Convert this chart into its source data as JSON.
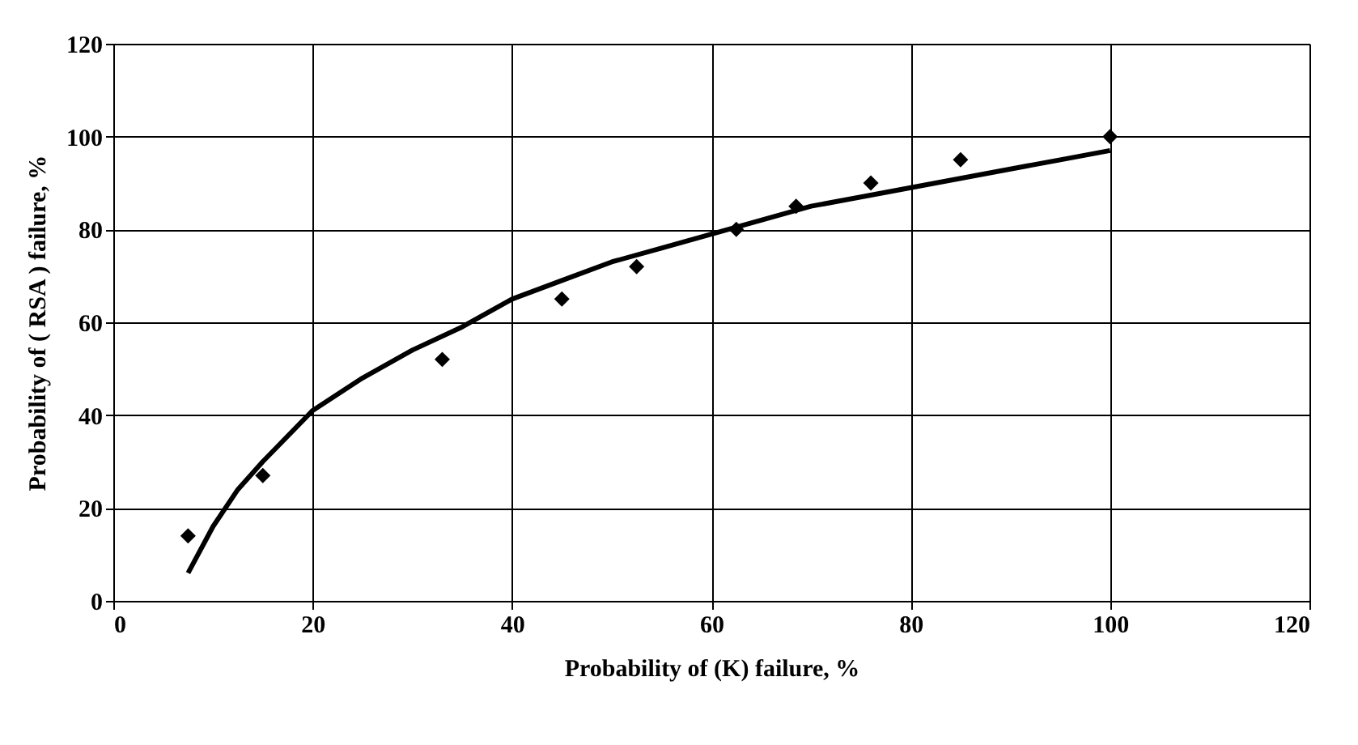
{
  "chart_data": {
    "type": "scatter",
    "xlabel": "Probability of (K) failure, %",
    "ylabel": "Probability of ( RSA ) failure, %",
    "xlim": [
      0,
      120
    ],
    "xticks": [
      0,
      20,
      40,
      60,
      80,
      100,
      120
    ],
    "ylim": [
      0,
      120
    ],
    "yticks": [
      0,
      20,
      40,
      60,
      80,
      100,
      120
    ],
    "grid": true,
    "series": [
      {
        "color": "#000000",
        "marker": "diamond",
        "x": [
          7.5,
          15,
          33,
          45,
          52.5,
          62.5,
          68.5,
          76,
          85,
          100
        ],
        "values": [
          14,
          27,
          52,
          65,
          72,
          80,
          85,
          90,
          95,
          100
        ]
      },
      {
        "type": "line",
        "color": "#000000",
        "line_style": "solid",
        "x": [
          7.5,
          10,
          12.5,
          15,
          20,
          25,
          30,
          35,
          40,
          45,
          50,
          55,
          60,
          65,
          70,
          75,
          80,
          85,
          90,
          95,
          100
        ],
        "values": [
          6,
          16,
          24,
          30,
          41,
          48,
          54,
          59,
          65,
          69,
          73,
          76,
          79,
          82,
          85,
          87,
          89,
          91,
          93,
          95,
          97
        ]
      }
    ]
  }
}
